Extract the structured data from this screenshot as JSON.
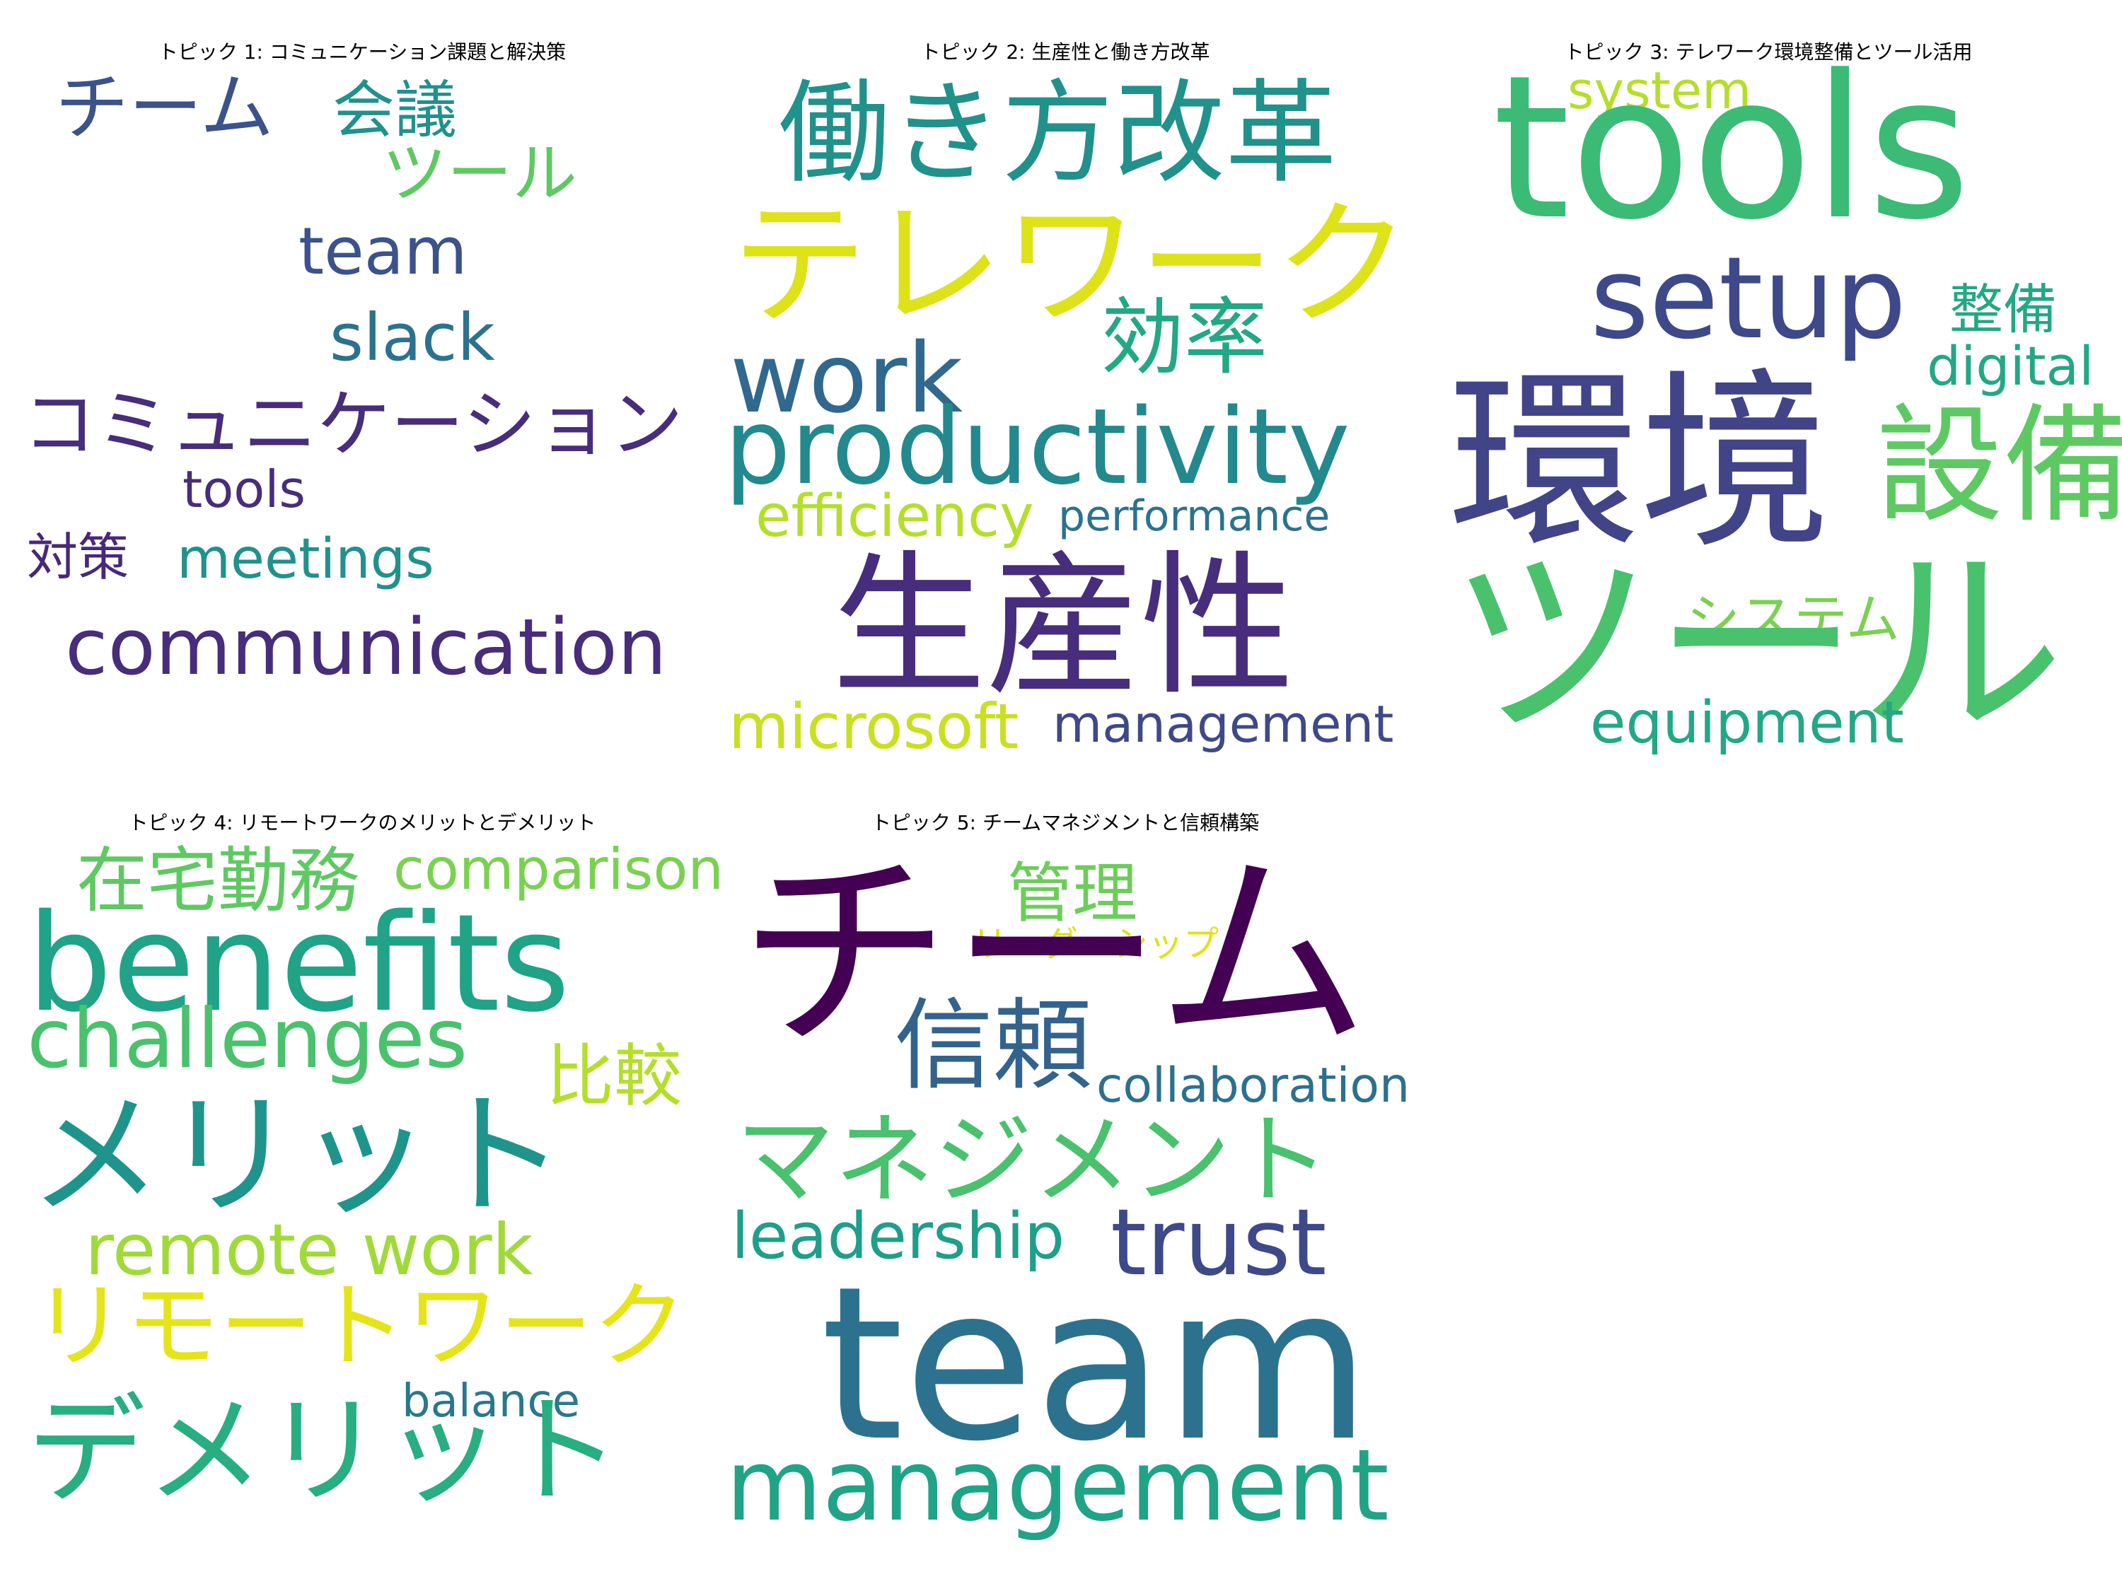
{
  "topics": [
    {
      "title": "トピック 1: コミュニケーション課題と解決策",
      "words": [
        {
          "text": "チーム",
          "color": "#3b528b"
        },
        {
          "text": "会議",
          "color": "#21918c"
        },
        {
          "text": "ツール",
          "color": "#5ec962"
        },
        {
          "text": "team",
          "color": "#3b528b"
        },
        {
          "text": "slack",
          "color": "#2c728e"
        },
        {
          "text": "コミュニケーション",
          "color": "#472d7b"
        },
        {
          "text": "tools",
          "color": "#472d7b"
        },
        {
          "text": "対策",
          "color": "#482878"
        },
        {
          "text": "meetings",
          "color": "#21918c"
        },
        {
          "text": "communication",
          "color": "#472d7b"
        }
      ]
    },
    {
      "title": "トピック 2: 生産性と働き方改革",
      "words": [
        {
          "text": "働き方改革",
          "color": "#21918c"
        },
        {
          "text": "テレワーク",
          "color": "#dde318"
        },
        {
          "text": "効率",
          "color": "#22a884"
        },
        {
          "text": "work",
          "color": "#31688e"
        },
        {
          "text": "productivity",
          "color": "#23898e"
        },
        {
          "text": "efficiency",
          "color": "#b5de2b"
        },
        {
          "text": "performance",
          "color": "#2c728e"
        },
        {
          "text": "生産性",
          "color": "#472d7b"
        },
        {
          "text": "microsoft",
          "color": "#c8e020"
        },
        {
          "text": "management",
          "color": "#3e4989"
        }
      ]
    },
    {
      "title": "トピック 3: テレワーク環境整備とツール活用",
      "words": [
        {
          "text": "system",
          "color": "#b5de2b"
        },
        {
          "text": "tools",
          "color": "#3bbb75"
        },
        {
          "text": "setup",
          "color": "#3e4989"
        },
        {
          "text": "整備",
          "color": "#22a884"
        },
        {
          "text": "digital",
          "color": "#22a884"
        },
        {
          "text": "環境",
          "color": "#414487"
        },
        {
          "text": "設備",
          "color": "#5ec962"
        },
        {
          "text": "システム",
          "color": "#7ad151"
        },
        {
          "text": "ツール",
          "color": "#4ac16d"
        },
        {
          "text": "equipment",
          "color": "#22a884"
        }
      ]
    },
    {
      "title": "トピック 4: リモートワークのメリットとデメリット",
      "words": [
        {
          "text": "在宅勤務",
          "color": "#5ec962"
        },
        {
          "text": "comparison",
          "color": "#7ad151"
        },
        {
          "text": "benefits",
          "color": "#20a386"
        },
        {
          "text": "challenges",
          "color": "#4ac16d"
        },
        {
          "text": "比較",
          "color": "#b5de2b"
        },
        {
          "text": "メリット",
          "color": "#1f948c"
        },
        {
          "text": "remote work",
          "color": "#a0da39"
        },
        {
          "text": "リモートワーク",
          "color": "#e5e419"
        },
        {
          "text": "balance",
          "color": "#2a788e"
        },
        {
          "text": "デメリット",
          "color": "#28ae80"
        }
      ]
    },
    {
      "title": "トピック 5: チームマネジメントと信頼構築",
      "words": [
        {
          "text": "管理",
          "color": "#6ccd5a"
        },
        {
          "text": "リーダーシップ",
          "color": "#dde318"
        },
        {
          "text": "チーム",
          "color": "#440154"
        },
        {
          "text": "信頼",
          "color": "#33638d"
        },
        {
          "text": "collaboration",
          "color": "#2d708e"
        },
        {
          "text": "マネジメント",
          "color": "#4ac16d"
        },
        {
          "text": "leadership",
          "color": "#1f9e89"
        },
        {
          "text": "trust",
          "color": "#3e4989"
        },
        {
          "text": "team",
          "color": "#2c728e"
        },
        {
          "text": "management",
          "color": "#20a386"
        }
      ]
    }
  ]
}
